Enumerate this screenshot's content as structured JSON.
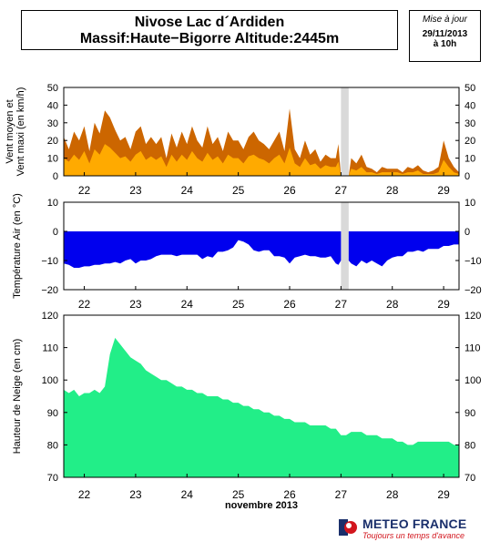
{
  "header": {
    "title_line1": "Nivose Lac d´Ardiden",
    "title_line2": "Massif:Haute−Bigorre Altitude:2445m",
    "update_label": "Mise à jour",
    "update_date": "29/11/2013",
    "update_time": "à 10h"
  },
  "footer": {
    "brand": "METEO FRANCE",
    "slogan": "Toujours un temps d'avance"
  },
  "colors": {
    "wind_max": "#cc6600",
    "wind_mean": "#ffaa00",
    "temperature": "#0000ee",
    "snow": "#22ee88",
    "gap": "#d9d9d9"
  },
  "chart_data": [
    {
      "type": "area",
      "id": "wind",
      "ylabel_line1": "Vent moyen et",
      "ylabel_line2": "Vent maxi (en km/h)",
      "ylim": [
        0,
        50
      ],
      "yticks": [
        "0",
        "10",
        "20",
        "30",
        "40",
        "50"
      ],
      "x_range": [
        21.6,
        29.3
      ],
      "xtick_labels": [
        "22",
        "23",
        "24",
        "25",
        "26",
        "27",
        "28",
        "29"
      ],
      "xticks": [
        22,
        23,
        24,
        25,
        26,
        27,
        28,
        29
      ],
      "missing_interval": [
        27.0,
        27.15
      ],
      "series": [
        {
          "role": "max",
          "x": [
            21.6,
            21.7,
            21.8,
            21.9,
            22.0,
            22.1,
            22.2,
            22.3,
            22.4,
            22.5,
            22.6,
            22.7,
            22.8,
            22.9,
            23.0,
            23.1,
            23.2,
            23.3,
            23.4,
            23.5,
            23.6,
            23.7,
            23.8,
            23.9,
            24.0,
            24.1,
            24.2,
            24.3,
            24.4,
            24.5,
            24.6,
            24.7,
            24.8,
            24.9,
            25.0,
            25.1,
            25.2,
            25.3,
            25.4,
            25.5,
            25.6,
            25.7,
            25.8,
            25.9,
            26.0,
            26.1,
            26.2,
            26.3,
            26.4,
            26.5,
            26.6,
            26.7,
            26.8,
            26.9,
            26.95,
            27.0,
            27.15,
            27.2,
            27.3,
            27.4,
            27.5,
            27.6,
            27.7,
            27.8,
            27.9,
            28.0,
            28.1,
            28.2,
            28.3,
            28.4,
            28.5,
            28.6,
            28.7,
            28.8,
            28.9,
            29.0,
            29.1,
            29.2,
            29.3
          ],
          "values": [
            22,
            15,
            25,
            20,
            28,
            14,
            30,
            24,
            37,
            33,
            26,
            20,
            22,
            15,
            25,
            28,
            18,
            22,
            18,
            22,
            10,
            24,
            16,
            25,
            18,
            28,
            20,
            16,
            28,
            18,
            22,
            14,
            25,
            20,
            20,
            15,
            22,
            25,
            20,
            18,
            15,
            20,
            25,
            14,
            38,
            15,
            10,
            20,
            12,
            15,
            8,
            12,
            10,
            10,
            18,
            0,
            0,
            10,
            7,
            12,
            5,
            4,
            2,
            5,
            4,
            4,
            4,
            2,
            5,
            4,
            6,
            3,
            2,
            3,
            5,
            20,
            10,
            5,
            2
          ]
        },
        {
          "role": "mean",
          "x": [
            21.6,
            21.7,
            21.8,
            21.9,
            22.0,
            22.1,
            22.2,
            22.3,
            22.4,
            22.5,
            22.6,
            22.7,
            22.8,
            22.9,
            23.0,
            23.1,
            23.2,
            23.3,
            23.4,
            23.5,
            23.6,
            23.7,
            23.8,
            23.9,
            24.0,
            24.1,
            24.2,
            24.3,
            24.4,
            24.5,
            24.6,
            24.7,
            24.8,
            24.9,
            25.0,
            25.1,
            25.2,
            25.3,
            25.4,
            25.5,
            25.6,
            25.7,
            25.8,
            25.9,
            26.0,
            26.1,
            26.2,
            26.3,
            26.4,
            26.5,
            26.6,
            26.7,
            26.8,
            26.9,
            26.95,
            27.0,
            27.15,
            27.2,
            27.3,
            27.4,
            27.5,
            27.6,
            27.7,
            27.8,
            27.9,
            28.0,
            28.1,
            28.2,
            28.3,
            28.4,
            28.5,
            28.6,
            28.7,
            28.8,
            28.9,
            29.0,
            29.1,
            29.2,
            29.3
          ],
          "values": [
            10,
            8,
            12,
            9,
            14,
            7,
            15,
            12,
            18,
            16,
            13,
            10,
            11,
            8,
            12,
            14,
            9,
            11,
            9,
            11,
            5,
            12,
            8,
            12,
            9,
            14,
            10,
            8,
            13,
            9,
            11,
            7,
            12,
            10,
            10,
            7,
            11,
            12,
            10,
            9,
            7,
            10,
            12,
            7,
            16,
            7,
            5,
            10,
            6,
            7,
            4,
            6,
            5,
            5,
            8,
            0,
            0,
            4,
            3,
            5,
            2,
            2,
            1,
            2,
            2,
            2,
            2,
            1,
            2,
            2,
            3,
            1,
            1,
            1,
            2,
            9,
            5,
            2,
            1
          ]
        }
      ]
    },
    {
      "type": "area",
      "id": "temperature",
      "ylabel": "Température Air (en °C)",
      "ylim": [
        -20,
        10
      ],
      "yticks": [
        "−20",
        "−10",
        "0",
        "10"
      ],
      "x_range": [
        21.6,
        29.3
      ],
      "xtick_labels": [
        "22",
        "23",
        "24",
        "25",
        "26",
        "27",
        "28",
        "29"
      ],
      "xticks": [
        22,
        23,
        24,
        25,
        26,
        27,
        28,
        29
      ],
      "missing_interval": [
        27.0,
        27.15
      ],
      "x": [
        21.6,
        21.7,
        21.8,
        21.9,
        22.0,
        22.1,
        22.2,
        22.3,
        22.4,
        22.5,
        22.6,
        22.7,
        22.8,
        22.9,
        23.0,
        23.1,
        23.2,
        23.3,
        23.4,
        23.5,
        23.6,
        23.7,
        23.8,
        23.9,
        24.0,
        24.1,
        24.2,
        24.3,
        24.4,
        24.5,
        24.6,
        24.7,
        24.8,
        24.9,
        25.0,
        25.1,
        25.2,
        25.3,
        25.4,
        25.5,
        25.6,
        25.7,
        25.8,
        25.9,
        26.0,
        26.1,
        26.2,
        26.3,
        26.4,
        26.5,
        26.6,
        26.7,
        26.8,
        26.9,
        26.95,
        27.0,
        27.15,
        27.2,
        27.3,
        27.4,
        27.5,
        27.6,
        27.7,
        27.8,
        27.9,
        28.0,
        28.1,
        28.2,
        28.3,
        28.4,
        28.5,
        28.6,
        28.7,
        28.8,
        28.9,
        29.0,
        29.1,
        29.2,
        29.3
      ],
      "values": [
        -11,
        -11.5,
        -12.5,
        -12.5,
        -12,
        -12,
        -11.5,
        -11.5,
        -11,
        -11,
        -10.5,
        -11,
        -10,
        -9.5,
        -11,
        -10,
        -10,
        -9.5,
        -8.5,
        -8,
        -8,
        -8,
        -8.5,
        -8,
        -8,
        -8,
        -8,
        -9.5,
        -8.5,
        -9,
        -7,
        -7,
        -6.5,
        -5.5,
        -3,
        -3.5,
        -4.5,
        -6.5,
        -7,
        -6.5,
        -6.5,
        -8.5,
        -8.5,
        -9,
        -11,
        -9,
        -8.5,
        -8,
        -8.5,
        -8.5,
        -9,
        -9,
        -8.5,
        -11,
        -11.5,
        -10,
        -10,
        -11,
        -12,
        -10,
        -11,
        -10,
        -11,
        -12,
        -10,
        -9,
        -8.5,
        -8.5,
        -7,
        -7,
        -6.5,
        -7,
        -6,
        -6,
        -6,
        -5,
        -5,
        -4.5,
        -4.5
      ]
    },
    {
      "type": "area",
      "id": "snow",
      "ylabel": "Hauteur de Neige (en cm)",
      "xlabel": "novembre 2013",
      "ylim": [
        70,
        120
      ],
      "yticks": [
        "70",
        "80",
        "90",
        "100",
        "110",
        "120"
      ],
      "x_range": [
        21.6,
        29.3
      ],
      "xtick_labels": [
        "22",
        "23",
        "24",
        "25",
        "26",
        "27",
        "28",
        "29"
      ],
      "xticks": [
        22,
        23,
        24,
        25,
        26,
        27,
        28,
        29
      ],
      "x": [
        21.6,
        21.7,
        21.8,
        21.9,
        22.0,
        22.1,
        22.2,
        22.3,
        22.4,
        22.5,
        22.6,
        22.7,
        22.8,
        22.9,
        23.0,
        23.1,
        23.2,
        23.3,
        23.4,
        23.5,
        23.6,
        23.7,
        23.8,
        23.9,
        24.0,
        24.1,
        24.2,
        24.3,
        24.4,
        24.5,
        24.6,
        24.7,
        24.8,
        24.9,
        25.0,
        25.1,
        25.2,
        25.3,
        25.4,
        25.5,
        25.6,
        25.7,
        25.8,
        25.9,
        26.0,
        26.1,
        26.2,
        26.3,
        26.4,
        26.5,
        26.6,
        26.7,
        26.8,
        26.9,
        27.0,
        27.1,
        27.2,
        27.3,
        27.4,
        27.5,
        27.6,
        27.7,
        27.8,
        27.9,
        28.0,
        28.1,
        28.2,
        28.3,
        28.4,
        28.5,
        28.6,
        28.7,
        28.8,
        28.9,
        29.0,
        29.1,
        29.2,
        29.3
      ],
      "values": [
        97,
        96,
        97,
        95,
        96,
        96,
        97,
        96,
        98,
        108,
        113,
        111,
        109,
        107,
        106,
        105,
        103,
        102,
        101,
        100,
        100,
        99,
        98,
        98,
        97,
        97,
        96,
        96,
        95,
        95,
        95,
        94,
        94,
        93,
        93,
        92,
        92,
        91,
        91,
        90,
        90,
        89,
        89,
        88,
        88,
        87,
        87,
        87,
        86,
        86,
        86,
        86,
        85,
        85,
        83,
        83,
        84,
        84,
        84,
        83,
        83,
        83,
        82,
        82,
        82,
        81,
        81,
        80,
        80,
        81,
        81,
        81,
        81,
        81,
        81,
        81,
        80,
        80
      ]
    }
  ]
}
